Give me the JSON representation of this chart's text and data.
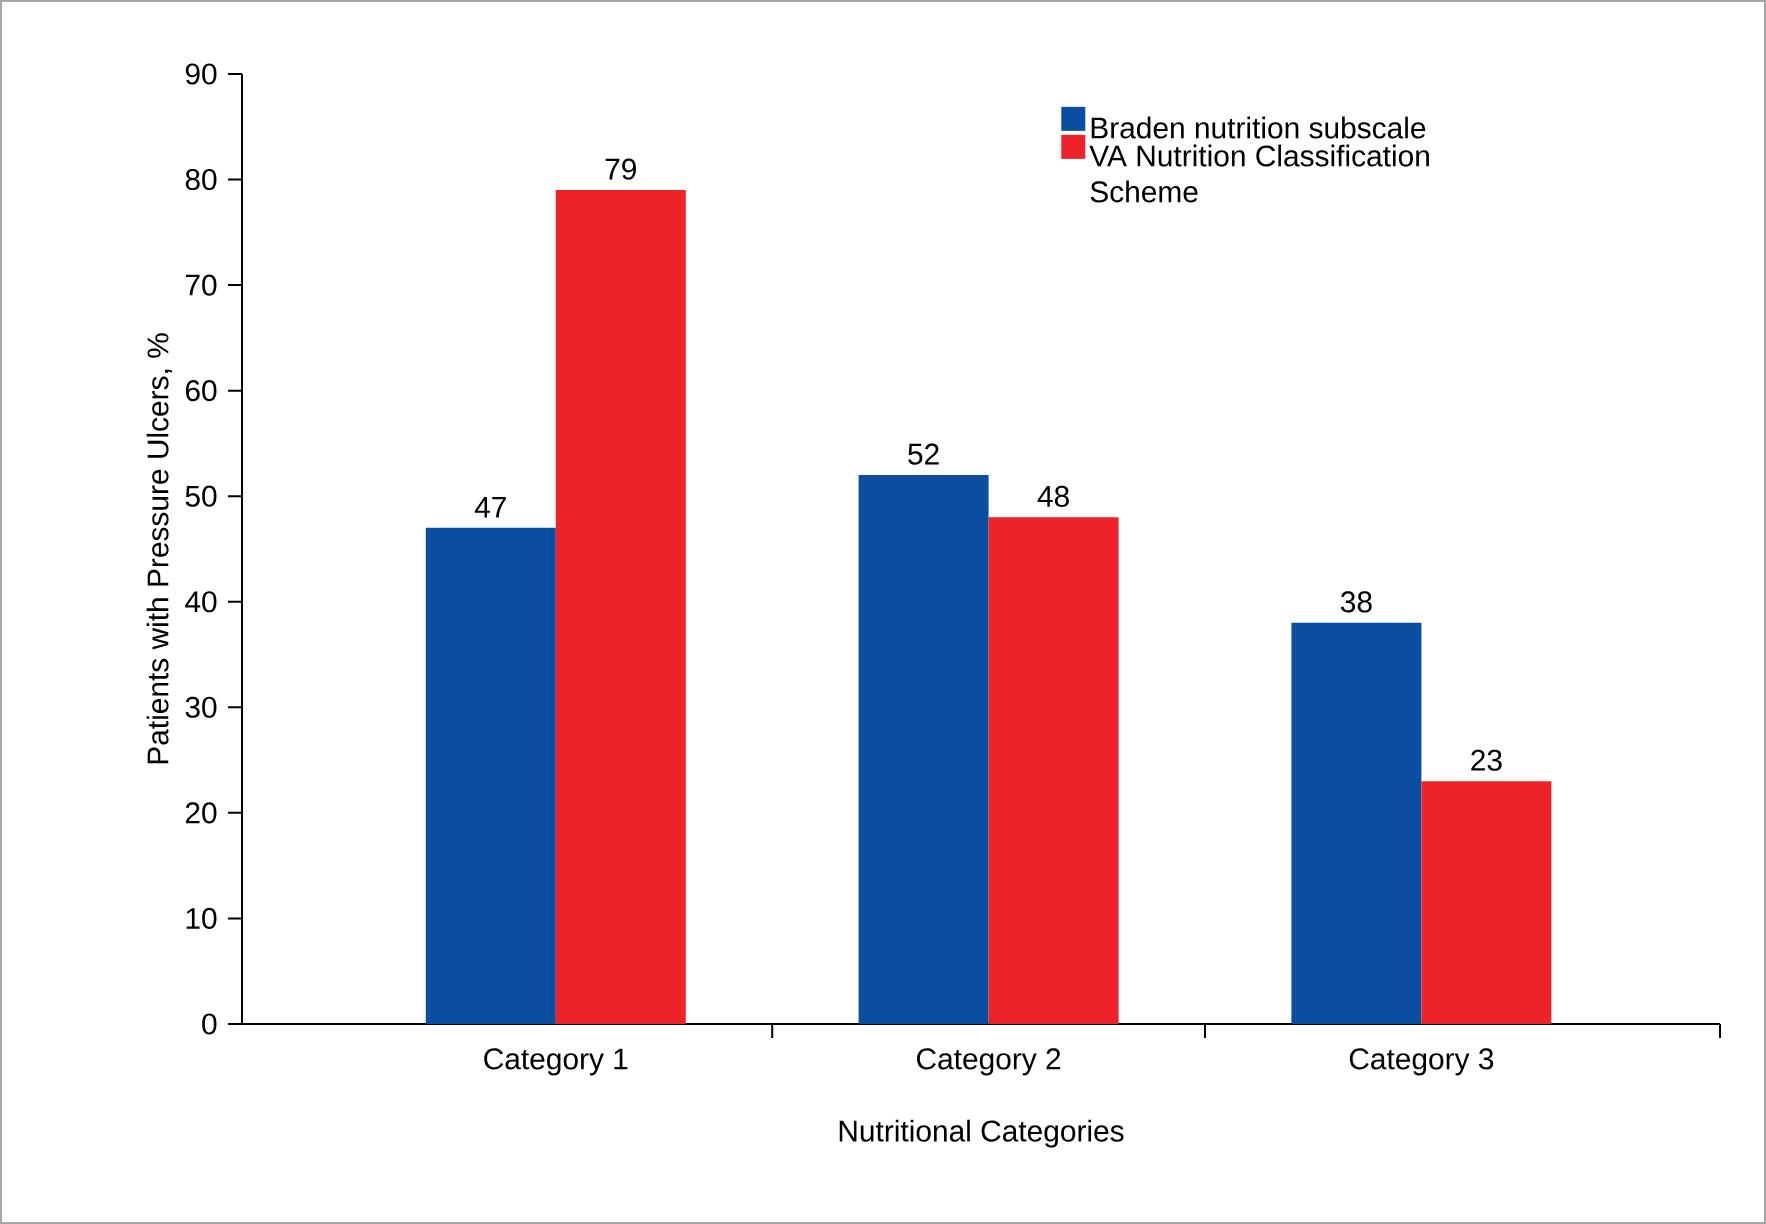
{
  "chart_data": {
    "type": "bar",
    "xlabel": "Nutritional Categories",
    "ylabel": "Patients with Pressure Ulcers, %",
    "categories": [
      "Category 1",
      "Category 2",
      "Category 3"
    ],
    "series": [
      {
        "name": "Braden nutrition subscale",
        "color": "#0a4ea2",
        "values": [
          47,
          52,
          38
        ]
      },
      {
        "name": "VA Nutrition Classification Scheme",
        "color": "#ee2229",
        "values": [
          79,
          48,
          23
        ]
      }
    ],
    "ylim": [
      0,
      90
    ],
    "yticks": [
      0,
      10,
      20,
      30,
      40,
      50,
      60,
      70,
      80,
      90
    ],
    "data_labels": true,
    "legend": "top right"
  }
}
